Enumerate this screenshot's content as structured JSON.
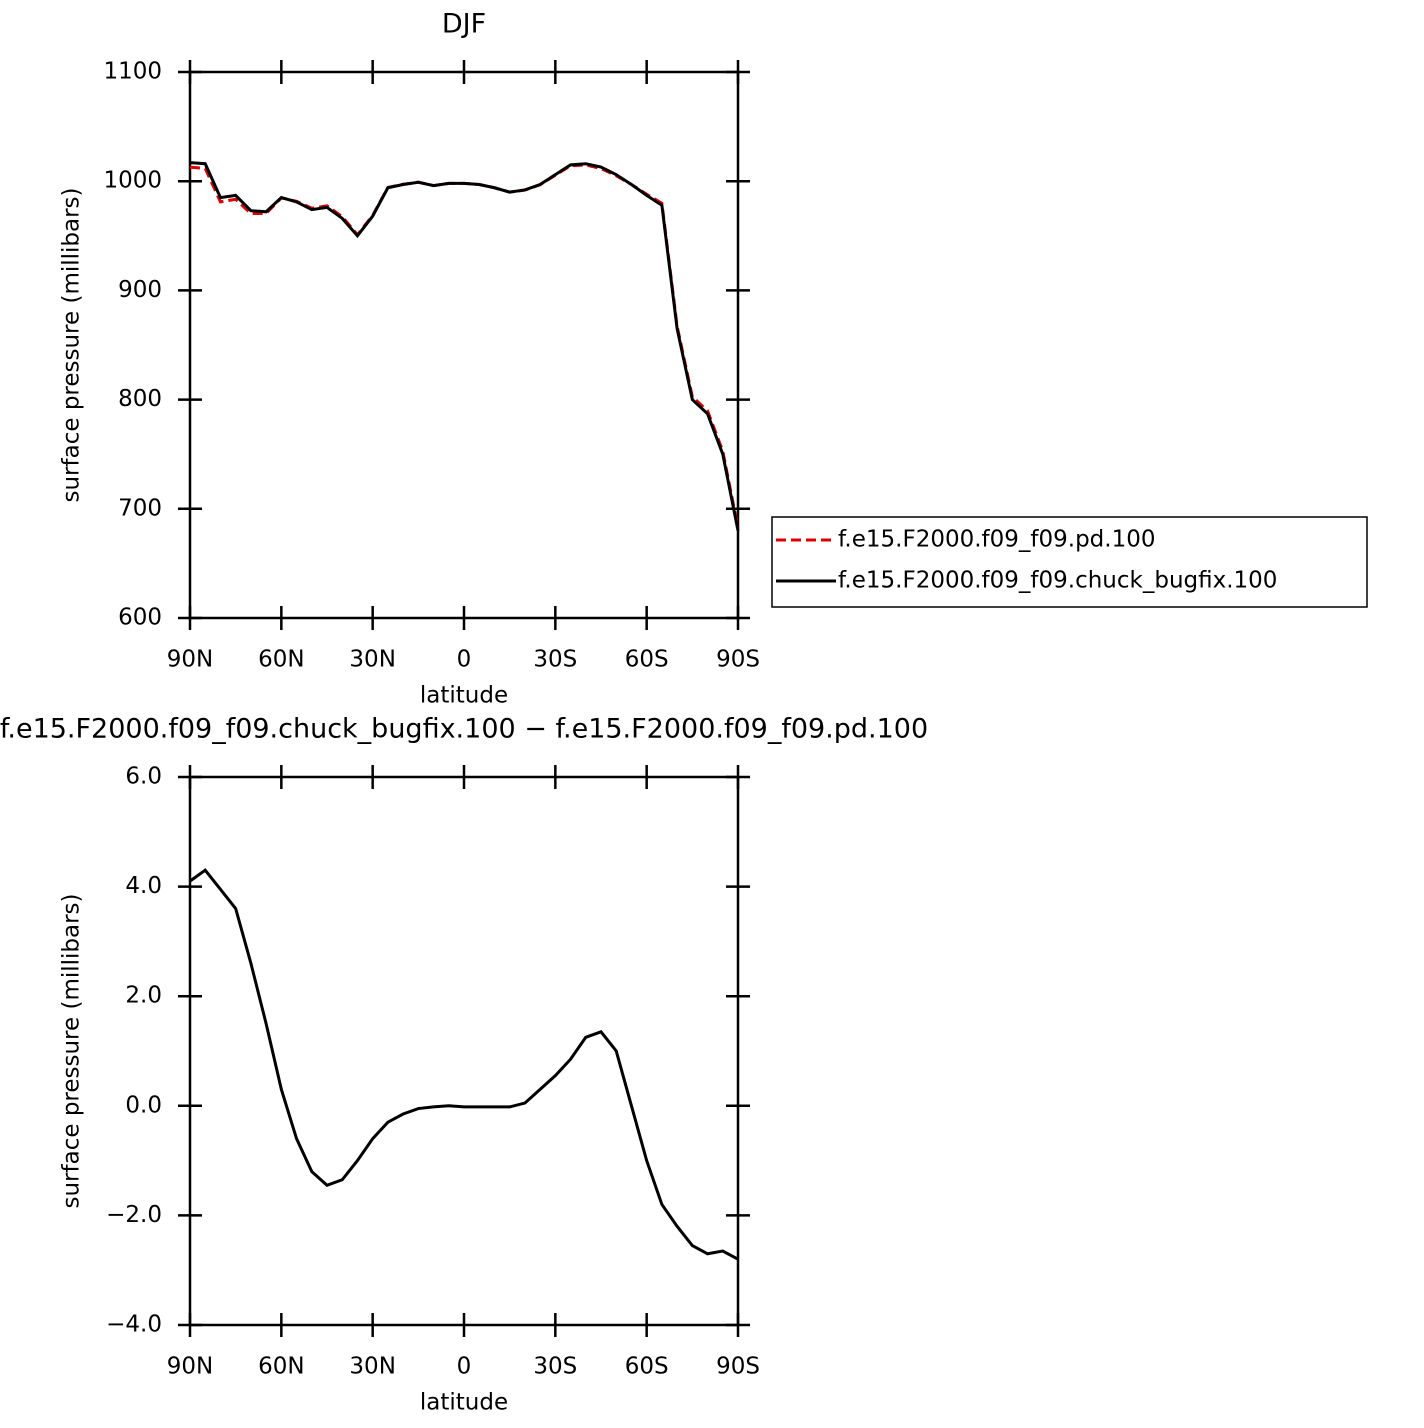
{
  "chart_data": [
    {
      "type": "line",
      "title": "DJF",
      "xlabel": "latitude",
      "ylabel": "surface pressure (millibars)",
      "xlim": [
        90,
        -90
      ],
      "ylim": [
        600,
        1100
      ],
      "xticks": [
        {
          "value": 90,
          "label": "90N"
        },
        {
          "value": 60,
          "label": "60N"
        },
        {
          "value": 30,
          "label": "30N"
        },
        0,
        {
          "value": -30,
          "label": "30S"
        },
        {
          "value": -60,
          "label": "60S"
        },
        {
          "value": -90,
          "label": "90S"
        }
      ],
      "yticks": [
        600,
        700,
        800,
        900,
        1000,
        1100
      ],
      "x": [
        90,
        85,
        80,
        75,
        70,
        65,
        60,
        55,
        50,
        45,
        40,
        35,
        30,
        25,
        20,
        15,
        10,
        5,
        0,
        -5,
        -10,
        -15,
        -20,
        -25,
        -30,
        -35,
        -40,
        -45,
        -50,
        -55,
        -60,
        -65,
        -70,
        -75,
        -80,
        -85,
        -90
      ],
      "series": [
        {
          "name": "f.e15.F2000.f09_f09.pd.100",
          "color": "#e00000",
          "dashed": true,
          "values": [
            1012.9,
            1011.7,
            981.1,
            983.4,
            970.4,
            970.5,
            984.7,
            981.6,
            975.2,
            977.5,
            967.4,
            951,
            968.6,
            994.3,
            997.2,
            999.1,
            996,
            998,
            998,
            997,
            994,
            990,
            991.9,
            996.7,
            1005.5,
            1014.2,
            1014.8,
            1011.7,
            1005,
            997,
            988,
            979.8,
            867.2,
            802.6,
            789.7,
            752.7,
            682.8
          ]
        },
        {
          "name": "f.e15.F2000.f09_f09.chuck_bugfix.100",
          "color": "#000000",
          "dashed": false,
          "values": [
            1017,
            1016,
            985,
            987,
            973,
            972,
            985,
            981,
            974,
            976,
            966,
            950,
            968,
            994,
            997,
            999,
            996,
            998,
            998,
            997,
            994,
            990,
            992,
            997,
            1006,
            1015,
            1016,
            1013,
            1006,
            997,
            987,
            978,
            865,
            800,
            787,
            750,
            680
          ]
        }
      ]
    },
    {
      "type": "line",
      "title": "f.e15.F2000.f09_f09.chuck_bugfix.100 − f.e15.F2000.f09_f09.pd.100",
      "xlabel": "latitude",
      "ylabel": "surface pressure (millibars)",
      "xlim": [
        90,
        -90
      ],
      "ylim": [
        -4,
        6
      ],
      "xticks": [
        {
          "value": 90,
          "label": "90N"
        },
        {
          "value": 60,
          "label": "60N"
        },
        {
          "value": 30,
          "label": "30N"
        },
        0,
        {
          "value": -30,
          "label": "30S"
        },
        {
          "value": -60,
          "label": "60S"
        },
        {
          "value": -90,
          "label": "90S"
        }
      ],
      "yticks": [
        {
          "value": -4,
          "label": "−4.0"
        },
        {
          "value": -2,
          "label": "−2.0"
        },
        {
          "value": 0,
          "label": "0.0"
        },
        {
          "value": 2,
          "label": "2.0"
        },
        {
          "value": 4,
          "label": "4.0"
        },
        {
          "value": 6,
          "label": "6.0"
        }
      ],
      "x": [
        90,
        85,
        80,
        75,
        70,
        65,
        60,
        55,
        50,
        45,
        40,
        35,
        30,
        25,
        20,
        15,
        10,
        5,
        0,
        -5,
        -10,
        -15,
        -20,
        -25,
        -30,
        -35,
        -40,
        -45,
        -50,
        -55,
        -60,
        -65,
        -70,
        -75,
        -80,
        -85,
        -90
      ],
      "series": [
        {
          "color": "#000000",
          "dashed": false,
          "values": [
            4.1,
            4.3,
            3.95,
            3.6,
            2.6,
            1.5,
            0.3,
            -0.6,
            -1.2,
            -1.45,
            -1.35,
            -1.0,
            -0.6,
            -0.3,
            -0.15,
            -0.05,
            -0.02,
            0,
            -0.02,
            -0.02,
            -0.02,
            -0.02,
            0.05,
            0.3,
            0.55,
            0.85,
            1.25,
            1.35,
            1.0,
            0,
            -1.0,
            -1.8,
            -2.2,
            -2.55,
            -2.7,
            -2.65,
            -2.8
          ]
        }
      ]
    }
  ]
}
